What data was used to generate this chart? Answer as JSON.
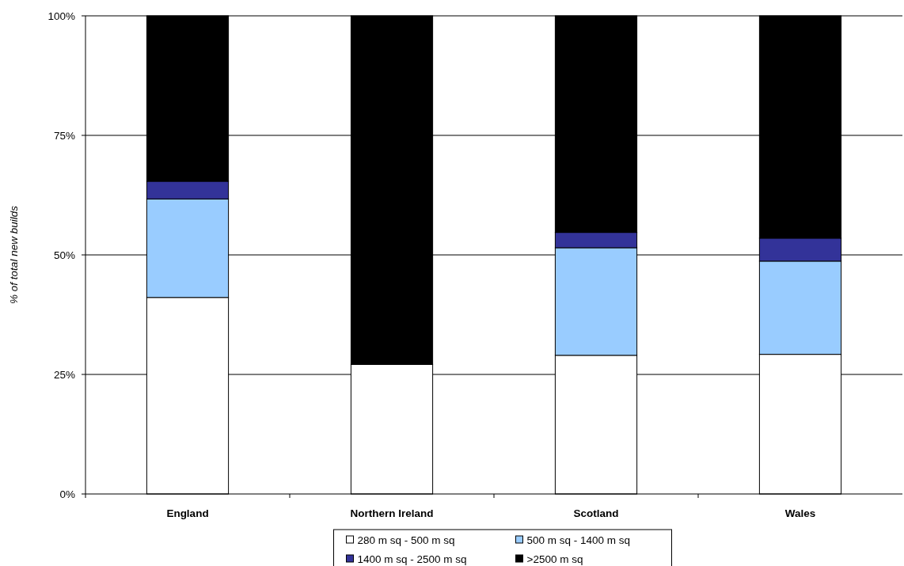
{
  "chart_data": {
    "type": "bar",
    "stacked": true,
    "ylabel": "% of total new builds",
    "categories": [
      "England",
      "Northern Ireland",
      "Scotland",
      "Wales"
    ],
    "series": [
      {
        "name": "280 m sq - 500 m sq",
        "color": "#ffffff",
        "values": [
          41.1,
          27.1,
          29.0,
          29.2
        ]
      },
      {
        "name": "500 m sq - 1400 m sq",
        "color": "#99ccff",
        "values": [
          20.6,
          null,
          22.5,
          19.5
        ]
      },
      {
        "name": "1400 m sq - 2500 m sq",
        "color": "#333399",
        "values": [
          3.7,
          null,
          3.2,
          4.8
        ]
      },
      {
        "name": ">2500 m sq",
        "color": "#000000",
        "values": [
          34.6,
          72.9,
          45.3,
          46.5
        ]
      }
    ],
    "ylim": [
      0,
      100
    ],
    "yticks": [
      {
        "value": 0,
        "label": "0%"
      },
      {
        "value": 25,
        "label": "25%"
      },
      {
        "value": 50,
        "label": "50%"
      },
      {
        "value": 75,
        "label": "75%"
      },
      {
        "value": 100,
        "label": "100%"
      }
    ],
    "grid": "y",
    "legend": "bottom"
  }
}
